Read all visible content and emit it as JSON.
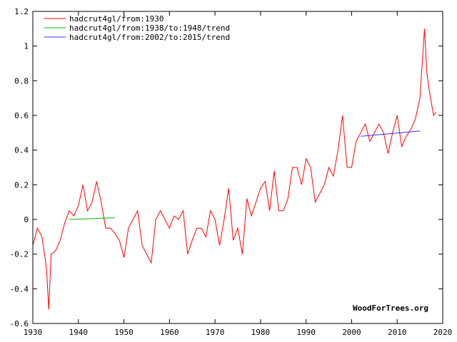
{
  "chart_data": {
    "type": "line",
    "title": "",
    "xlabel": "",
    "ylabel": "",
    "xlim": [
      1930,
      2020
    ],
    "ylim": [
      -0.6,
      1.2
    ],
    "x_ticks": [
      1930,
      1940,
      1950,
      1960,
      1970,
      1980,
      1990,
      2000,
      2010,
      2020
    ],
    "y_ticks": [
      -0.6,
      -0.4,
      -0.2,
      0,
      0.2,
      0.4,
      0.6,
      0.8,
      1,
      1.2
    ],
    "y_tick_labels": [
      "-0.6",
      "-0.4",
      "-0.2",
      "0",
      "0.2",
      "0.4",
      "0.6",
      "0.8",
      "1",
      "1.2"
    ],
    "grid": false,
    "legend_position": "top-left",
    "credit": "WoodForTrees.org",
    "series": [
      {
        "name": "hadcrut4gl/from:1930",
        "color": "#ff0000",
        "x": [
          1930.0,
          1931.0,
          1932.0,
          1933.0,
          1933.5,
          1934.0,
          1935.0,
          1936.0,
          1937.0,
          1938.0,
          1939.0,
          1940.0,
          1941.0,
          1942.0,
          1943.0,
          1944.0,
          1945.0,
          1946.0,
          1947.0,
          1948.0,
          1949.0,
          1950.0,
          1951.0,
          1952.0,
          1953.0,
          1954.0,
          1955.0,
          1956.0,
          1957.0,
          1958.0,
          1959.0,
          1960.0,
          1961.0,
          1962.0,
          1963.0,
          1964.0,
          1965.0,
          1966.0,
          1967.0,
          1968.0,
          1969.0,
          1970.0,
          1971.0,
          1972.0,
          1973.0,
          1974.0,
          1975.0,
          1976.0,
          1977.0,
          1978.0,
          1979.0,
          1980.0,
          1981.0,
          1982.0,
          1983.0,
          1984.0,
          1985.0,
          1986.0,
          1987.0,
          1988.0,
          1989.0,
          1990.0,
          1991.0,
          1992.0,
          1993.0,
          1994.0,
          1995.0,
          1996.0,
          1997.0,
          1998.0,
          1999.0,
          2000.0,
          2001.0,
          2002.0,
          2003.0,
          2004.0,
          2005.0,
          2006.0,
          2007.0,
          2008.0,
          2009.0,
          2010.0,
          2011.0,
          2012.0,
          2013.0,
          2014.0,
          2015.0,
          2015.5,
          2016.0,
          2016.5,
          2017.0,
          2018.0,
          2018.5
        ],
        "y": [
          -0.15,
          -0.05,
          -0.1,
          -0.28,
          -0.52,
          -0.2,
          -0.18,
          -0.12,
          -0.02,
          0.05,
          0.02,
          0.08,
          0.2,
          0.05,
          0.1,
          0.22,
          0.1,
          -0.05,
          -0.05,
          -0.08,
          -0.12,
          -0.22,
          -0.05,
          0.0,
          0.05,
          -0.15,
          -0.2,
          -0.25,
          0.0,
          0.05,
          0.0,
          -0.05,
          0.02,
          0.0,
          0.05,
          -0.2,
          -0.12,
          -0.05,
          -0.05,
          -0.1,
          0.05,
          0.0,
          -0.15,
          0.0,
          0.18,
          -0.12,
          -0.05,
          -0.2,
          0.12,
          0.02,
          0.1,
          0.18,
          0.22,
          0.05,
          0.28,
          0.05,
          0.05,
          0.12,
          0.3,
          0.3,
          0.2,
          0.35,
          0.3,
          0.1,
          0.15,
          0.2,
          0.3,
          0.25,
          0.4,
          0.6,
          0.3,
          0.3,
          0.45,
          0.5,
          0.55,
          0.45,
          0.5,
          0.55,
          0.5,
          0.38,
          0.5,
          0.6,
          0.42,
          0.48,
          0.52,
          0.58,
          0.7,
          0.9,
          1.1,
          0.85,
          0.75,
          0.6,
          0.62
        ]
      },
      {
        "name": "hadcrut4gl/from:1938/to:1948/trend",
        "color": "#00b000",
        "x": [
          1938,
          1948
        ],
        "y": [
          0.0,
          0.01
        ]
      },
      {
        "name": "hadcrut4gl/from:2002/to:2015/trend",
        "color": "#3030ff",
        "x": [
          2002,
          2015
        ],
        "y": [
          0.48,
          0.51
        ]
      }
    ]
  }
}
